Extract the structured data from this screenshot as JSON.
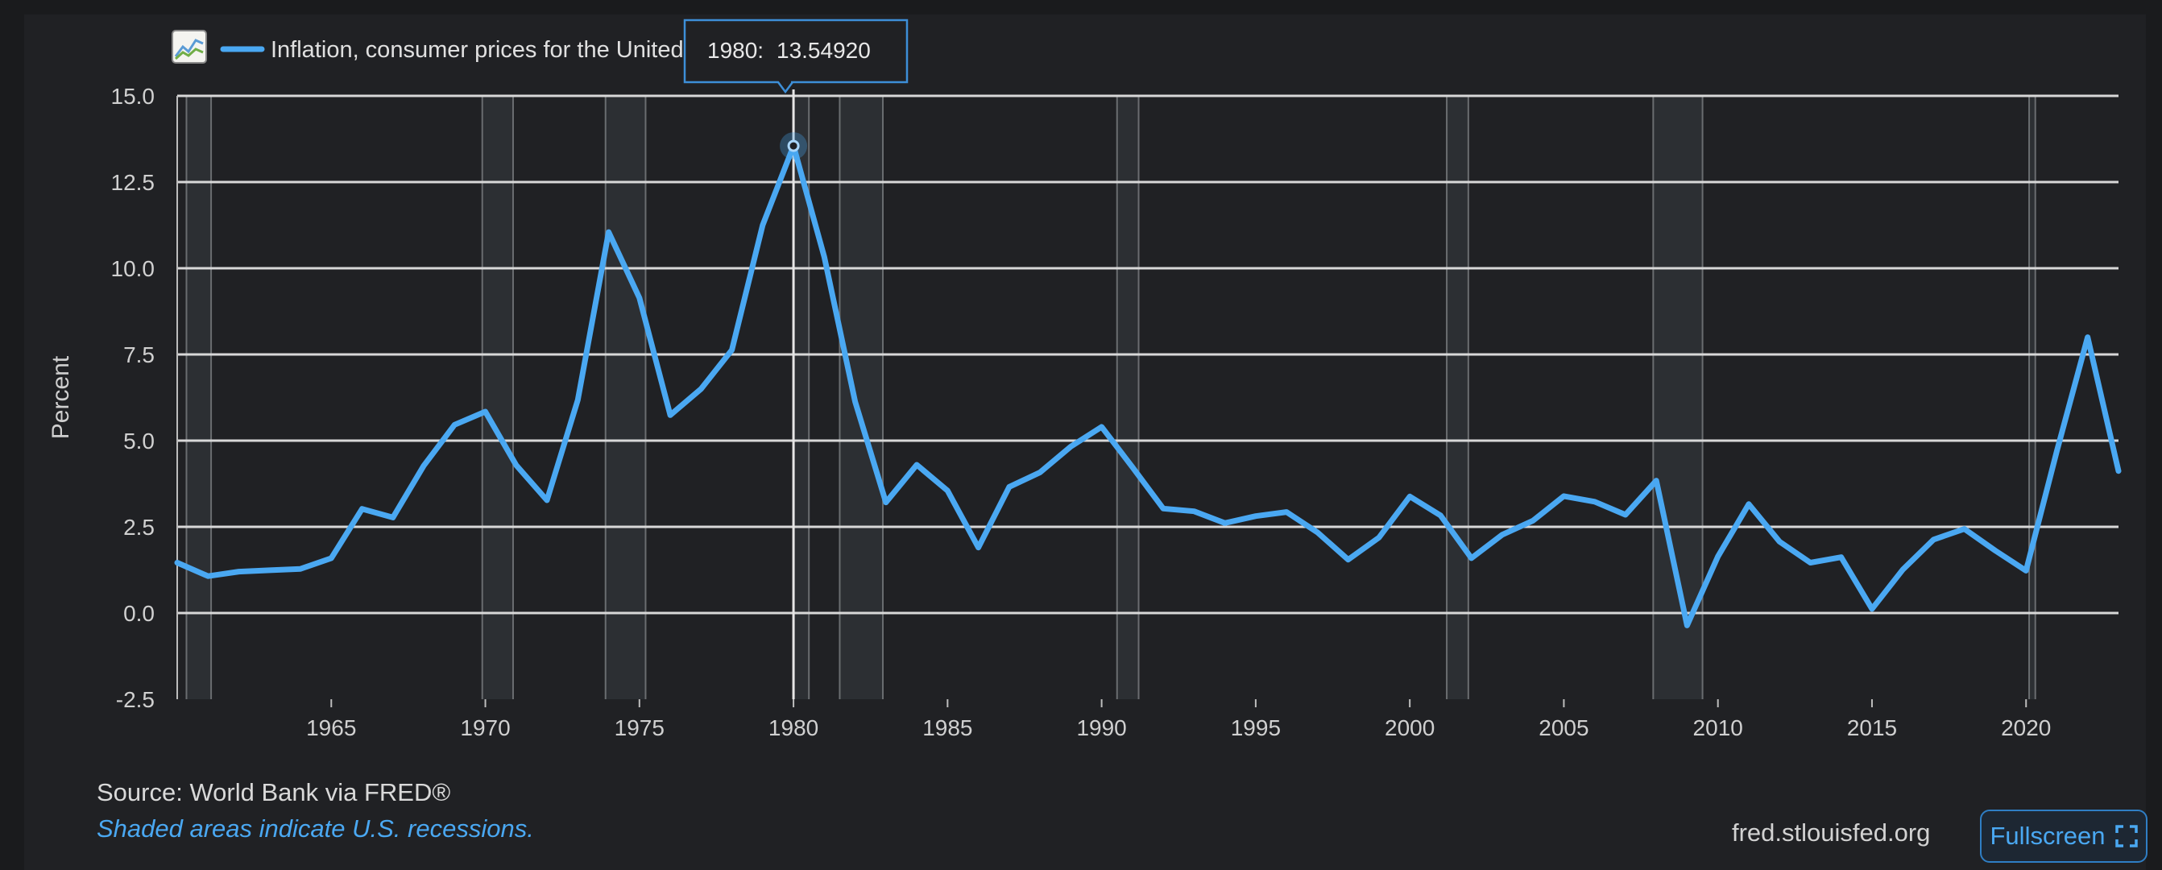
{
  "legend": {
    "label": "Inflation, consumer prices for the United States",
    "icon": "chart-line-icon"
  },
  "tooltip": {
    "year": "1980:",
    "value": "13.54920"
  },
  "footer": {
    "source": "Source: World Bank via FRED®",
    "recession_note": "Shaded areas indicate U.S. recessions.",
    "site": "fred.stlouisfed.org",
    "fullscreen_label": "Fullscreen"
  },
  "colors": {
    "line": "#4aa8f2",
    "background": "#202124",
    "recession": "#2c2f33",
    "grid": "#d8d8d8"
  },
  "chart_data": {
    "type": "line",
    "ylabel": "Percent",
    "xlabel": "",
    "ylim": [
      -2.5,
      15.0
    ],
    "xlim": [
      1960,
      2023
    ],
    "yticks": [
      "15.0",
      "12.5",
      "10.0",
      "7.5",
      "5.0",
      "2.5",
      "0.0",
      "-2.5"
    ],
    "xticks": [
      "1965",
      "1970",
      "1975",
      "1980",
      "1985",
      "1990",
      "1995",
      "2000",
      "2005",
      "2010",
      "2015",
      "2020"
    ],
    "highlight": {
      "x": 1980,
      "y": 13.5492
    },
    "recessions": [
      [
        1960.3,
        1961.1
      ],
      [
        1969.9,
        1970.9
      ],
      [
        1973.9,
        1975.2
      ],
      [
        1980.0,
        1980.5
      ],
      [
        1981.5,
        1982.9
      ],
      [
        1990.5,
        1991.2
      ],
      [
        2001.2,
        2001.9
      ],
      [
        2007.9,
        2009.5
      ],
      [
        2020.1,
        2020.3
      ]
    ],
    "series": [
      {
        "x": [
          1960,
          1961,
          1962,
          1963,
          1964,
          1965,
          1966,
          1967,
          1968,
          1969,
          1970,
          1971,
          1972,
          1973,
          1974,
          1975,
          1976,
          1977,
          1978,
          1979,
          1980,
          1981,
          1982,
          1983,
          1984,
          1985,
          1986,
          1987,
          1988,
          1989,
          1990,
          1991,
          1992,
          1993,
          1994,
          1995,
          1996,
          1997,
          1998,
          1999,
          2000,
          2001,
          2002,
          2003,
          2004,
          2005,
          2006,
          2007,
          2008,
          2009,
          2010,
          2011,
          2012,
          2013,
          2014,
          2015,
          2016,
          2017,
          2018,
          2019,
          2020,
          2021,
          2022,
          2023
        ],
        "values": [
          1.46,
          1.07,
          1.2,
          1.24,
          1.28,
          1.59,
          3.02,
          2.77,
          4.27,
          5.46,
          5.84,
          4.29,
          3.27,
          6.18,
          11.05,
          9.14,
          5.74,
          6.5,
          7.63,
          11.25,
          13.55,
          10.33,
          6.13,
          3.21,
          4.3,
          3.55,
          1.9,
          3.66,
          4.08,
          4.83,
          5.4,
          4.23,
          3.03,
          2.95,
          2.61,
          2.81,
          2.93,
          2.34,
          1.55,
          2.19,
          3.38,
          2.83,
          1.59,
          2.27,
          2.68,
          3.39,
          3.23,
          2.85,
          3.84,
          -0.36,
          1.64,
          3.16,
          2.07,
          1.46,
          1.62,
          0.12,
          1.26,
          2.13,
          2.44,
          1.81,
          1.23,
          4.7,
          8.0,
          4.12
        ]
      }
    ]
  }
}
